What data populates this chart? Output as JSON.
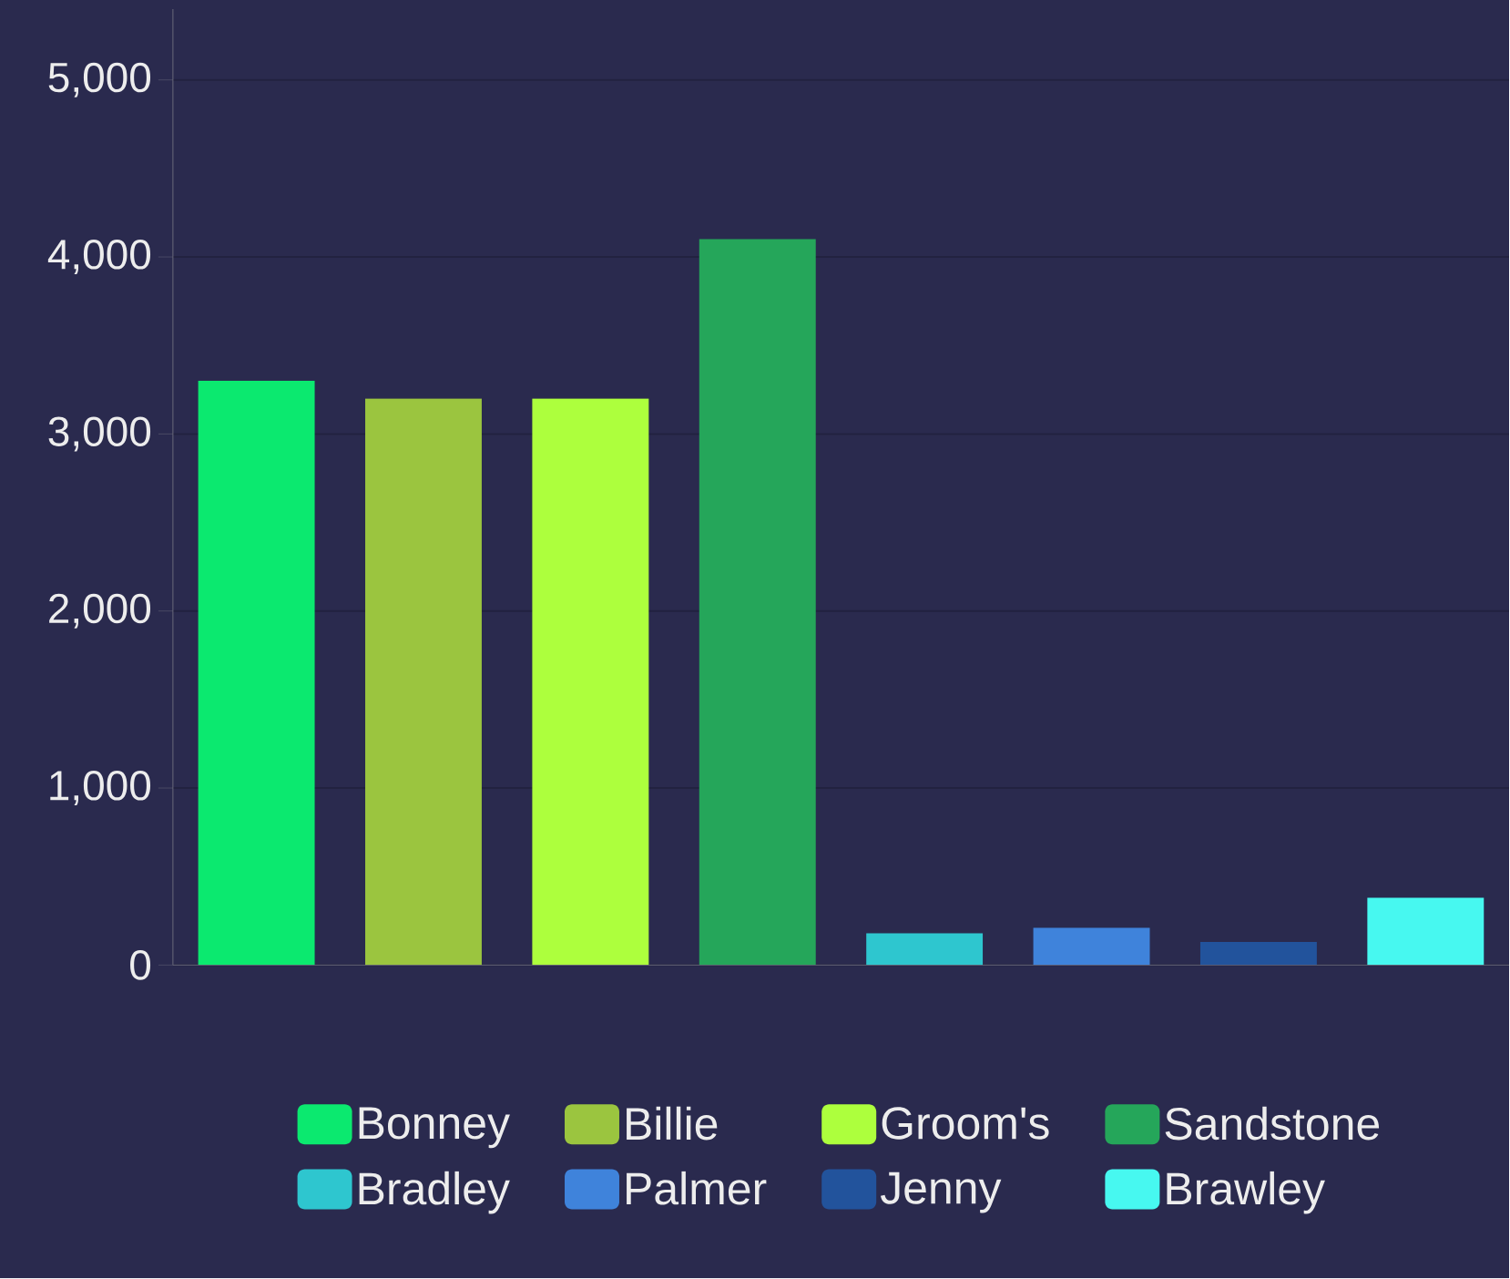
{
  "chart_data": {
    "type": "bar",
    "categories": [
      null,
      null,
      null,
      null,
      null,
      null,
      null,
      null
    ],
    "series": [
      {
        "name": "Bonney",
        "color": "#0be96f",
        "values": [
          3300,
          null,
          null,
          null,
          null,
          null,
          null,
          null
        ]
      },
      {
        "name": "Billie",
        "color": "#9bc53f",
        "values": [
          null,
          3200,
          null,
          null,
          null,
          null,
          null,
          null
        ]
      },
      {
        "name": "Groom's",
        "color": "#adff3d",
        "values": [
          null,
          null,
          3200,
          null,
          null,
          null,
          null,
          null
        ]
      },
      {
        "name": "Sandstone",
        "color": "#25a65a",
        "values": [
          null,
          null,
          null,
          4100,
          null,
          null,
          null,
          null
        ]
      },
      {
        "name": "Bradley",
        "color": "#2ec6cf",
        "values": [
          null,
          null,
          null,
          null,
          180,
          null,
          null,
          null
        ]
      },
      {
        "name": "Palmer",
        "color": "#3f83db",
        "values": [
          null,
          null,
          null,
          null,
          null,
          210,
          null,
          null
        ]
      },
      {
        "name": "Jenny",
        "color": "#22539c",
        "values": [
          null,
          null,
          null,
          null,
          null,
          null,
          130,
          null
        ]
      },
      {
        "name": "Brawley",
        "color": "#47f8f0",
        "values": [
          null,
          null,
          null,
          null,
          null,
          null,
          null,
          380
        ]
      }
    ],
    "ylim": [
      0,
      5400
    ],
    "yticks": [
      0,
      {
        "value": 1000,
        "label": "1,000"
      },
      {
        "value": 2000,
        "label": "2,000"
      },
      {
        "value": 3000,
        "label": "3,000"
      },
      {
        "value": 4000,
        "label": "4,000"
      },
      {
        "value": 5000,
        "label": "5,000"
      }
    ],
    "grid": "y",
    "legend": "bottom"
  }
}
